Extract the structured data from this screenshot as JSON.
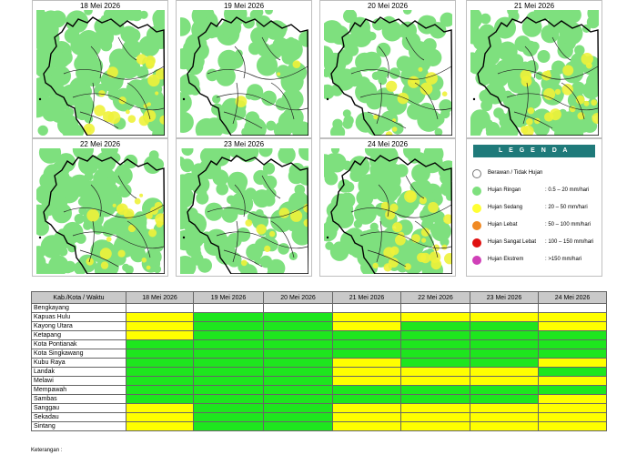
{
  "maps": [
    {
      "date": "18 Mei 2026",
      "density": 0.85,
      "yellow": 0.35
    },
    {
      "date": "19 Mei 2026",
      "density": 0.55,
      "yellow": 0.05
    },
    {
      "date": "20 Mei 2026",
      "density": 0.6,
      "yellow": 0.2
    },
    {
      "date": "21 Mei 2026",
      "density": 0.9,
      "yellow": 0.4
    },
    {
      "date": "22 Mei 2026",
      "density": 0.85,
      "yellow": 0.35
    },
    {
      "date": "23 Mei 2026",
      "density": 0.7,
      "yellow": 0.15
    },
    {
      "date": "24 Mei 2026",
      "density": 0.9,
      "yellow": 0.45
    }
  ],
  "legend": {
    "title": "L E G E N D A",
    "items": [
      {
        "label": "Berawan / Tidak Hujan",
        "range": "",
        "color": "#ffffff"
      },
      {
        "label": "Hujan Ringan",
        "range": ": 0.5 – 20 mm/hari",
        "color": "#7ee07e"
      },
      {
        "label": "Hujan Sedang",
        "range": ": 20 – 50 mm/hari",
        "color": "#ffff33"
      },
      {
        "label": "Hujan Lebat",
        "range": ": 50 – 100 mm/hari",
        "color": "#f08a24"
      },
      {
        "label": "Hujan Sangat Lebat",
        "range": ": 100 – 150 mm/hari",
        "color": "#e01010"
      },
      {
        "label": "Hujan Ekstrem",
        "range": ": >150 mm/hari",
        "color": "#d040b8"
      }
    ]
  },
  "table": {
    "header_label": "Kab./Kota / Waktu",
    "dates": [
      "18 Mei 2026",
      "19 Mei 2026",
      "20 Mei 2026",
      "21 Mei 2026",
      "22 Mei 2026",
      "23 Mei 2026",
      "24 Mei 2026"
    ],
    "rows": [
      {
        "name": "Bengkayang",
        "cells": [
          "",
          "",
          "",
          "",
          "",
          "",
          ""
        ]
      },
      {
        "name": "Kapuas Hulu",
        "cells": [
          "y",
          "g",
          "g",
          "y",
          "y",
          "y",
          "y"
        ]
      },
      {
        "name": "Kayong Utara",
        "cells": [
          "y",
          "g",
          "g",
          "y",
          "g",
          "g",
          "y"
        ]
      },
      {
        "name": "Ketapang",
        "cells": [
          "y",
          "g",
          "g",
          "g",
          "g",
          "g",
          "g"
        ]
      },
      {
        "name": "Kota Pontianak",
        "cells": [
          "g",
          "g",
          "g",
          "g",
          "g",
          "g",
          "g"
        ]
      },
      {
        "name": "Kota Singkawang",
        "cells": [
          "g",
          "g",
          "g",
          "g",
          "g",
          "g",
          "g"
        ]
      },
      {
        "name": "Kubu Raya",
        "cells": [
          "g",
          "g",
          "g",
          "y",
          "g",
          "g",
          "y"
        ]
      },
      {
        "name": "Landak",
        "cells": [
          "g",
          "g",
          "g",
          "y",
          "y",
          "y",
          "g"
        ]
      },
      {
        "name": "Melawi",
        "cells": [
          "g",
          "g",
          "g",
          "y",
          "y",
          "y",
          "y"
        ]
      },
      {
        "name": "Mempawah",
        "cells": [
          "g",
          "g",
          "g",
          "g",
          "g",
          "g",
          "g"
        ]
      },
      {
        "name": "Sambas",
        "cells": [
          "g",
          "g",
          "g",
          "g",
          "g",
          "g",
          "y"
        ]
      },
      {
        "name": "Sanggau",
        "cells": [
          "y",
          "g",
          "g",
          "y",
          "y",
          "y",
          "y"
        ]
      },
      {
        "name": "Sekadau",
        "cells": [
          "y",
          "g",
          "g",
          "y",
          "y",
          "y",
          "y"
        ]
      },
      {
        "name": "Sintang",
        "cells": [
          "y",
          "g",
          "g",
          "y",
          "y",
          "y",
          "y"
        ]
      }
    ]
  },
  "footer": {
    "note": "Keterangan :"
  }
}
